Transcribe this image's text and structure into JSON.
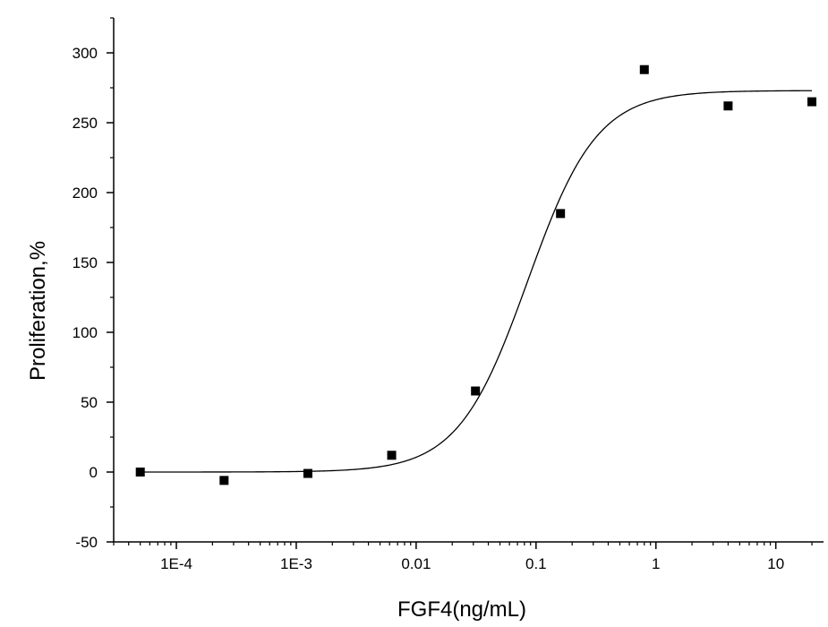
{
  "chart_data": {
    "type": "scatter",
    "xlabel": "FGF4(ng/mL)",
    "ylabel": "Proliferation,%",
    "x_scale": "log",
    "xlim": [
      3e-05,
      25
    ],
    "ylim": [
      -50,
      325
    ],
    "x_ticks": [
      0.0001,
      0.001,
      0.01,
      0.1,
      1,
      10
    ],
    "x_tick_labels": [
      "1E-4",
      "1E-3",
      "0.01",
      "0.1",
      "1",
      "10"
    ],
    "y_ticks": [
      -50,
      0,
      50,
      100,
      150,
      200,
      250,
      300
    ],
    "y_tick_labels": [
      "-50",
      "0",
      "50",
      "100",
      "150",
      "200",
      "250",
      "300"
    ],
    "grid": false,
    "legend": "none",
    "series": [
      {
        "marker": "square",
        "color": "#000000",
        "x": [
          5e-05,
          0.00025,
          0.00125,
          0.00625,
          0.03125,
          0.16,
          0.8,
          4,
          20
        ],
        "y": [
          0,
          -6,
          -1,
          12,
          58,
          185,
          288,
          262,
          265
        ]
      }
    ],
    "fit_curve": {
      "model": "4-parameter logistic",
      "bottom": 0,
      "top": 273,
      "ec50": 0.085,
      "hill": 1.5,
      "color": "#000000"
    }
  }
}
